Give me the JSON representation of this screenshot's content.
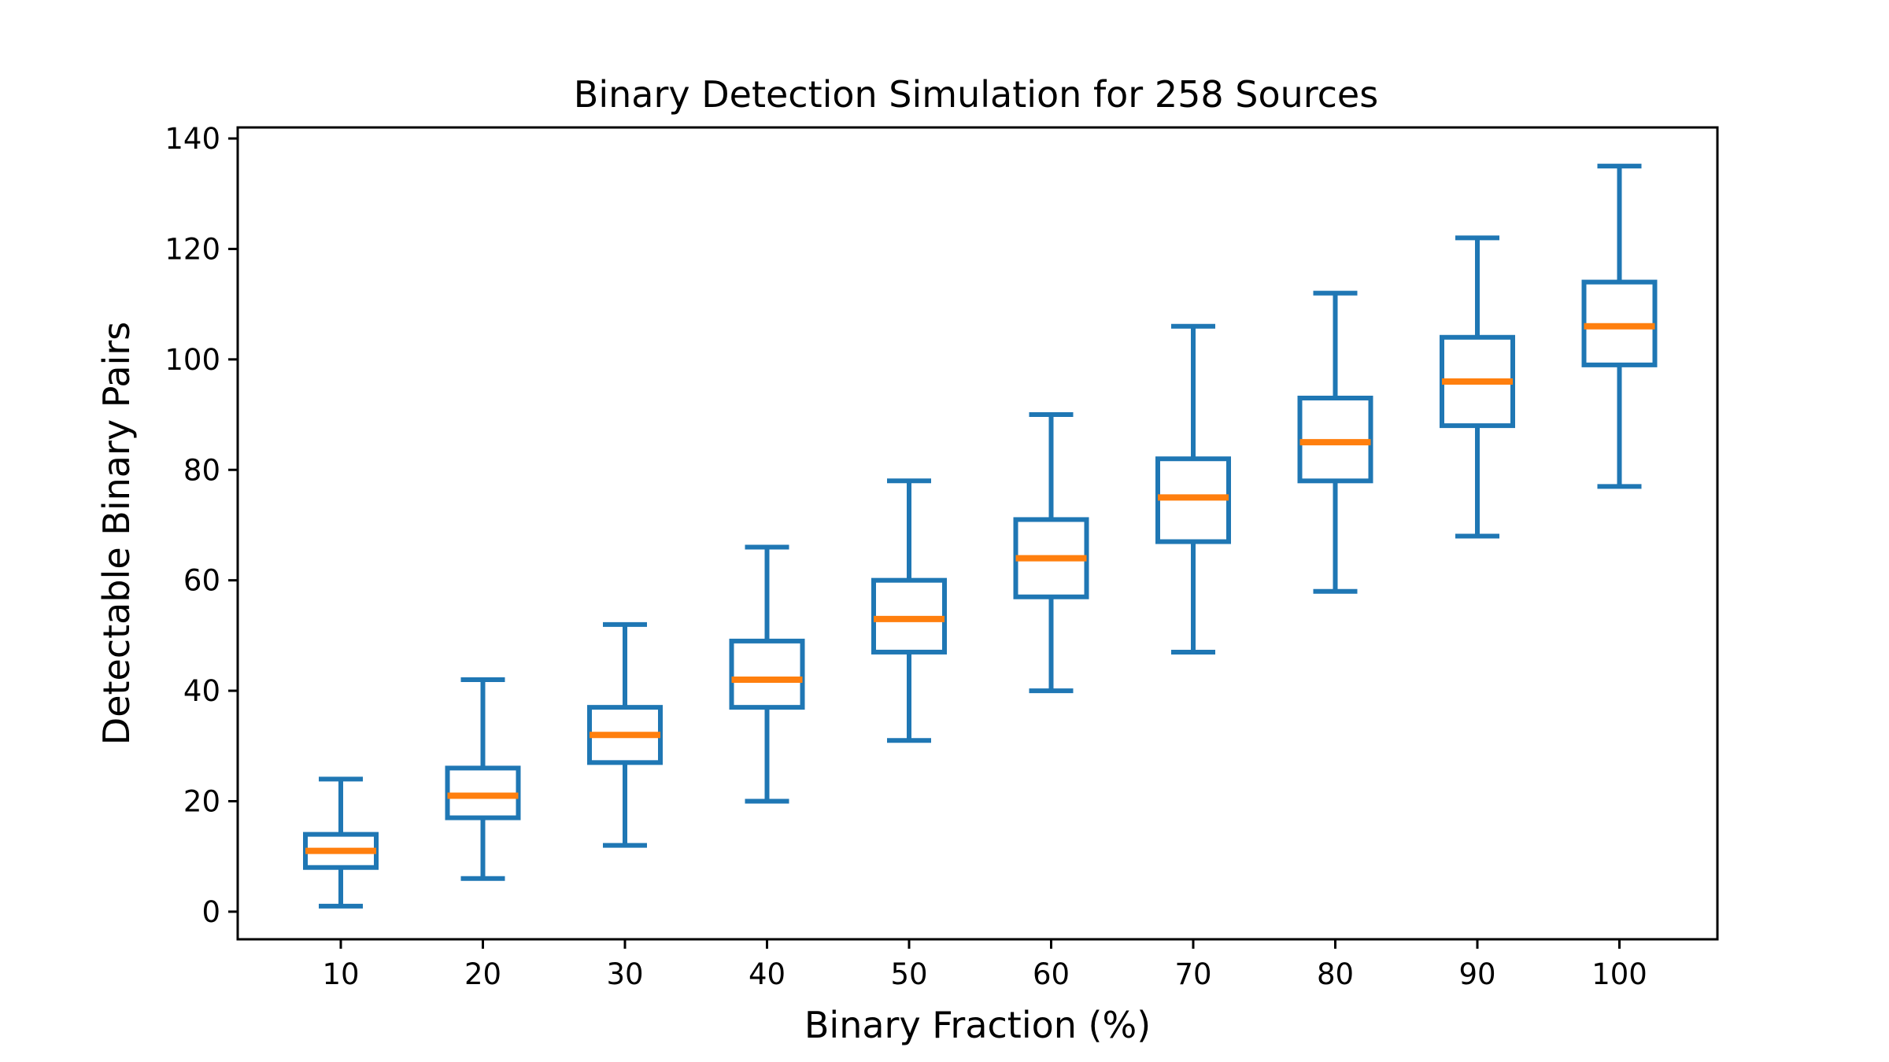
{
  "chart_data": {
    "type": "box",
    "title": "Binary Detection Simulation for 258 Sources",
    "xlabel": "Binary Fraction (%)",
    "ylabel": "Detectable Binary Pairs",
    "categories": [
      "10",
      "20",
      "30",
      "40",
      "50",
      "60",
      "70",
      "80",
      "90",
      "100"
    ],
    "ylim": [
      -5,
      142
    ],
    "yticks": [
      0,
      20,
      40,
      60,
      80,
      100,
      120,
      140
    ],
    "grid": false,
    "legend": "none",
    "box_color": "#1f77b4",
    "median_color": "#ff7f0e",
    "boxes": [
      {
        "category": "10",
        "min": 1,
        "q1": 8,
        "median": 11,
        "q3": 14,
        "max": 24
      },
      {
        "category": "20",
        "min": 6,
        "q1": 17,
        "median": 21,
        "q3": 26,
        "max": 42
      },
      {
        "category": "30",
        "min": 12,
        "q1": 27,
        "median": 32,
        "q3": 37,
        "max": 52
      },
      {
        "category": "40",
        "min": 20,
        "q1": 37,
        "median": 42,
        "q3": 49,
        "max": 66
      },
      {
        "category": "50",
        "min": 31,
        "q1": 47,
        "median": 53,
        "q3": 60,
        "max": 78
      },
      {
        "category": "60",
        "min": 40,
        "q1": 57,
        "median": 64,
        "q3": 71,
        "max": 90
      },
      {
        "category": "70",
        "min": 47,
        "q1": 67,
        "median": 75,
        "q3": 82,
        "max": 106
      },
      {
        "category": "80",
        "min": 58,
        "q1": 78,
        "median": 85,
        "q3": 93,
        "max": 112
      },
      {
        "category": "90",
        "min": 68,
        "q1": 88,
        "median": 96,
        "q3": 104,
        "max": 122
      },
      {
        "category": "100",
        "min": 77,
        "q1": 99,
        "median": 106,
        "q3": 114,
        "max": 135
      }
    ]
  }
}
